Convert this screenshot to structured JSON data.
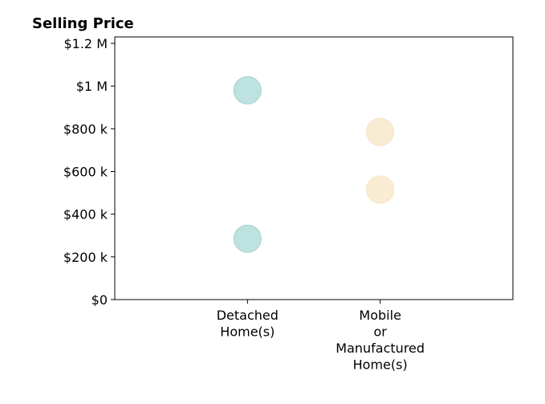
{
  "chart_data": {
    "type": "scatter",
    "title": "Selling Price",
    "xlabel": "",
    "ylabel": "",
    "categories": [
      "Detached Home(s)",
      "Mobile or Manufactured Home(s)"
    ],
    "category_label_lines": [
      [
        "Detached",
        "Home(s)"
      ],
      [
        "Mobile",
        "or",
        "Manufactured",
        "Home(s)"
      ]
    ],
    "yticks": [
      0,
      200000,
      400000,
      600000,
      800000,
      1000000,
      1200000
    ],
    "ytick_labels": [
      "$0",
      "$200 k",
      "$400 k",
      "$600 k",
      "$800 k",
      "$1 M",
      "$1.2 M"
    ],
    "ylim": [
      0,
      1230000
    ],
    "xlim": [
      -1,
      2
    ],
    "grid": false,
    "series": [
      {
        "category": "Detached Home(s)",
        "values": [
          980000,
          285000
        ],
        "color": "#a8d8d4"
      },
      {
        "category": "Mobile or Manufactured Home(s)",
        "values": [
          785000,
          515000
        ],
        "color": "#f6e6c4"
      }
    ]
  }
}
